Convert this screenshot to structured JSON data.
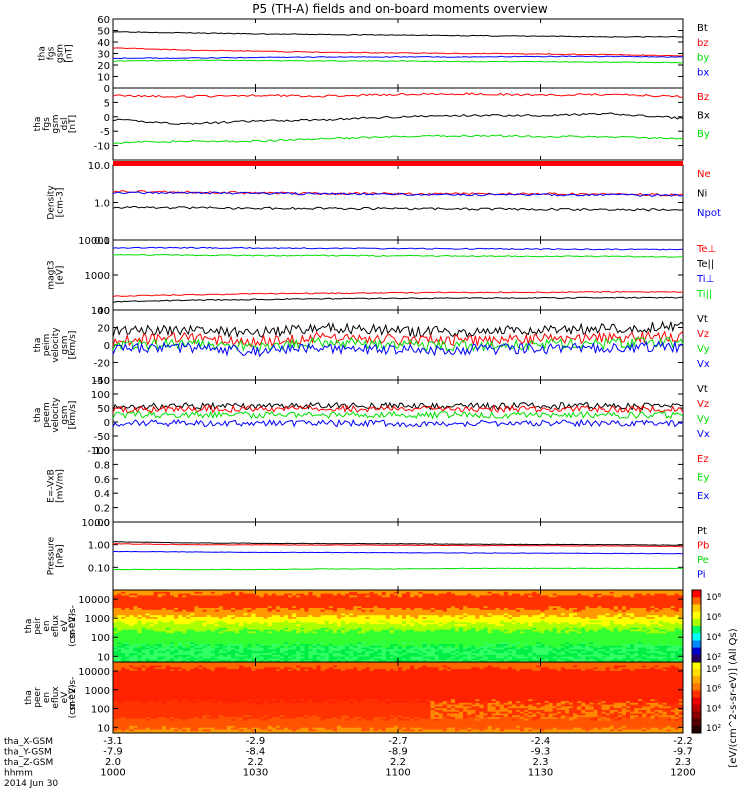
{
  "title": "P5 (TH-A) fields and on-board moments overview",
  "colors": {
    "black": "#000000",
    "red": "#ff0000",
    "green": "#00e000",
    "blue": "#0000ff",
    "gray": "#000000"
  },
  "chart_data": [
    {
      "type": "line",
      "id": "fgs_mag",
      "ylabel_lines": [
        "tha",
        "fgs",
        "gsm",
        "[nT]"
      ],
      "ylim": [
        0,
        60
      ],
      "yticks": [
        0,
        10,
        20,
        30,
        40,
        50,
        60
      ],
      "series": [
        {
          "name": "Bt",
          "color": "black",
          "values": [
            49,
            48,
            47,
            46.5,
            46,
            45.5,
            45,
            44.5,
            44.5
          ]
        },
        {
          "name": "bz",
          "color": "red",
          "values": [
            35,
            33,
            32,
            31,
            30.5,
            30,
            29.5,
            29,
            28
          ]
        },
        {
          "name": "by",
          "color": "green",
          "values": [
            23.5,
            24,
            24,
            23.5,
            23.5,
            23,
            23,
            22.5,
            22
          ]
        },
        {
          "name": "bx",
          "color": "blue",
          "values": [
            26,
            26,
            26.5,
            27,
            27,
            27,
            27.5,
            27.5,
            27
          ]
        }
      ]
    },
    {
      "type": "line",
      "id": "fgs_comp",
      "ylabel_lines": [
        "tha",
        "fgs",
        "gsm",
        "dsl",
        "[nT]"
      ],
      "ylim": [
        -15,
        10
      ],
      "yticks": [
        -10,
        -5,
        0,
        5
      ],
      "series": [
        {
          "name": "Bz",
          "color": "red",
          "values": [
            7.5,
            7,
            7.5,
            7.2,
            7.8,
            8,
            7.5,
            7.8,
            7
          ]
        },
        {
          "name": "Bx",
          "color": "black",
          "values": [
            -1,
            -2.5,
            -1.5,
            -1,
            0,
            0.5,
            0.5,
            1,
            -0.5
          ]
        },
        {
          "name": "By",
          "color": "green",
          "values": [
            -9,
            -8.5,
            -8.5,
            -7.5,
            -7,
            -6.5,
            -6.8,
            -7,
            -7.5
          ]
        }
      ]
    },
    {
      "type": "line",
      "id": "density",
      "ylabel_lines": [
        "Density",
        "[cm-3]"
      ],
      "scale": "log",
      "ylim": [
        0.1,
        10
      ],
      "yticks": [
        0.1,
        1.0,
        10.0
      ],
      "ytick_labels": [
        "0.1",
        "1.0",
        "10.0"
      ],
      "series": [
        {
          "name": "Ne",
          "color": "red",
          "values": [
            2.0,
            1.9,
            1.8,
            1.75,
            1.7,
            1.7,
            1.7,
            1.65,
            1.6
          ]
        },
        {
          "name": "Ni",
          "color": "black",
          "values": [
            0.75,
            0.72,
            0.7,
            0.7,
            0.68,
            0.67,
            0.66,
            0.65,
            0.63
          ]
        },
        {
          "name": "Npot",
          "color": "blue",
          "values": [
            1.85,
            1.8,
            1.75,
            1.7,
            1.65,
            1.62,
            1.6,
            1.58,
            1.55
          ]
        }
      ]
    },
    {
      "type": "line",
      "id": "temperature",
      "ylabel_lines": [
        "magt3",
        "[eV]"
      ],
      "scale": "log",
      "ylim": [
        100,
        10000
      ],
      "yticks": [
        100,
        1000,
        10000
      ],
      "ytick_labels": [
        "100",
        "1000",
        "10000"
      ],
      "series": [
        {
          "name": "Te⊥",
          "color": "red",
          "values": [
            250,
            270,
            290,
            300,
            310,
            320,
            320,
            330,
            330
          ]
        },
        {
          "name": "Te||",
          "color": "black",
          "values": [
            170,
            190,
            200,
            210,
            215,
            220,
            220,
            225,
            225
          ]
        },
        {
          "name": "Ti⊥",
          "color": "blue",
          "values": [
            6000,
            6000,
            5900,
            5800,
            5700,
            5600,
            5500,
            5400,
            5300
          ]
        },
        {
          "name": "Ti||",
          "color": "green",
          "values": [
            3800,
            3700,
            3600,
            3600,
            3500,
            3500,
            3400,
            3400,
            3300
          ]
        }
      ]
    },
    {
      "type": "line",
      "id": "peim_velocity",
      "ylabel_lines": [
        "tha",
        "peim",
        "velocity",
        "gsm",
        "[km/s]"
      ],
      "ylim": [
        -40,
        40
      ],
      "yticks": [
        -40,
        -20,
        0,
        20,
        40
      ],
      "series": [
        {
          "name": "Vt",
          "color": "black",
          "values": [
            15,
            18,
            14,
            20,
            16,
            15,
            17,
            19,
            22
          ]
        },
        {
          "name": "Vz",
          "color": "red",
          "values": [
            5,
            8,
            4,
            9,
            6,
            5,
            7,
            8,
            10
          ]
        },
        {
          "name": "Vy",
          "color": "green",
          "values": [
            0,
            2,
            -2,
            3,
            0,
            -1,
            1,
            2,
            3
          ]
        },
        {
          "name": "Vx",
          "color": "blue",
          "values": [
            -5,
            -3,
            -7,
            -4,
            -6,
            -5,
            -4,
            -3,
            -2
          ]
        }
      ]
    },
    {
      "type": "line",
      "id": "peem_velocity",
      "ylabel_lines": [
        "tha",
        "peem",
        "velocity",
        "gsm",
        "[km/s]"
      ],
      "ylim": [
        -100,
        150
      ],
      "yticks": [
        -100,
        -50,
        0,
        50,
        100,
        150
      ],
      "series": [
        {
          "name": "Vt",
          "color": "black",
          "values": [
            55,
            57,
            56,
            58,
            57,
            56,
            58,
            57,
            56
          ]
        },
        {
          "name": "Vz",
          "color": "red",
          "values": [
            45,
            46,
            46,
            47,
            46,
            46,
            47,
            46,
            46
          ]
        },
        {
          "name": "Vy",
          "color": "green",
          "values": [
            25,
            26,
            25,
            26,
            25,
            25,
            26,
            25,
            25
          ]
        },
        {
          "name": "Vx",
          "color": "blue",
          "values": [
            -5,
            -4,
            -5,
            -4,
            -5,
            -5,
            -4,
            -5,
            -5
          ]
        }
      ]
    },
    {
      "type": "line",
      "id": "efield",
      "ylabel_lines": [
        "E=-VxB",
        "[mV/m]"
      ],
      "ylim": [
        0,
        1
      ],
      "yticks": [
        0.0,
        0.2,
        0.4,
        0.6,
        0.8,
        1.0
      ],
      "ytick_labels": [
        "0.0",
        "0.2",
        "0.4",
        "0.6",
        "0.8",
        "1.0"
      ],
      "series": [
        {
          "name": "Ez",
          "color": "red",
          "values": []
        },
        {
          "name": "Ey",
          "color": "green",
          "values": []
        },
        {
          "name": "Ex",
          "color": "blue",
          "values": []
        }
      ]
    },
    {
      "type": "line",
      "id": "pressure",
      "ylabel_lines": [
        "Pressure",
        "[nPa]"
      ],
      "scale": "log",
      "ylim": [
        0.01,
        10
      ],
      "yticks": [
        0.1,
        1.0,
        10.0
      ],
      "ytick_labels": [
        "0.10",
        "1.00",
        "10.00"
      ],
      "series": [
        {
          "name": "Pt",
          "color": "black",
          "values": [
            1.35,
            1.2,
            1.15,
            1.12,
            1.1,
            1.05,
            1.02,
            1.0,
            0.95
          ]
        },
        {
          "name": "Pb",
          "color": "red",
          "values": [
            1.1,
            1.0,
            0.98,
            0.96,
            0.95,
            0.92,
            0.9,
            0.88,
            0.82
          ]
        },
        {
          "name": "Pe",
          "color": "green",
          "values": [
            0.08,
            0.08,
            0.08,
            0.085,
            0.085,
            0.09,
            0.09,
            0.09,
            0.09
          ]
        },
        {
          "name": "Pi",
          "color": "blue",
          "values": [
            0.5,
            0.48,
            0.46,
            0.45,
            0.44,
            0.43,
            0.42,
            0.41,
            0.4
          ]
        }
      ]
    },
    {
      "type": "heatmap",
      "id": "peir_spec",
      "ylabel_lines": [
        "tha",
        "peir",
        "en",
        "eflux",
        "eV",
        "(cm^2-s-",
        "sr-eV)"
      ],
      "scale": "log",
      "ylim": [
        5,
        30000
      ],
      "yticks": [
        10,
        100,
        1000,
        10000
      ],
      "ytick_labels": [
        "10",
        "100",
        "1000",
        "10000"
      ],
      "palette": "rainbow",
      "colorbar_ticks": [
        "10²",
        "10⁴",
        "10⁶",
        "10⁸"
      ]
    },
    {
      "type": "heatmap",
      "id": "peer_spec",
      "ylabel_lines": [
        "tha",
        "peer",
        "en",
        "eflux",
        "eV",
        "(cm^2-s-",
        "sr-eV)"
      ],
      "scale": "log",
      "ylim": [
        5,
        30000
      ],
      "yticks": [
        10,
        100,
        1000,
        10000
      ],
      "ytick_labels": [
        "10",
        "100",
        "1000",
        "10000"
      ],
      "palette": "hot",
      "colorbar_ticks": [
        "10²",
        "10⁴",
        "10⁶",
        "10⁸"
      ]
    }
  ],
  "colorbar_label": "[eV/(cm^2-s-sr-eV)] (All Qs)",
  "fgs_divider_color": "#ff0000",
  "xaxis": {
    "rows": [
      {
        "label": "tha_X-GSM",
        "values": [
          "-3.1",
          "-2.9",
          "-2.7",
          "-2.4",
          "-2.2"
        ]
      },
      {
        "label": "tha_Y-GSM",
        "values": [
          "-7.9",
          "-8.4",
          "-8.9",
          "-9.3",
          "-9.7"
        ]
      },
      {
        "label": "tha_Z-GSM",
        "values": [
          "2.0",
          "2.2",
          "2.2",
          "2.3",
          "2.3"
        ]
      },
      {
        "label": "hhmm",
        "values": [
          "1000",
          "1030",
          "1100",
          "1130",
          "1200"
        ]
      }
    ],
    "date": "2014 Jun 30"
  }
}
